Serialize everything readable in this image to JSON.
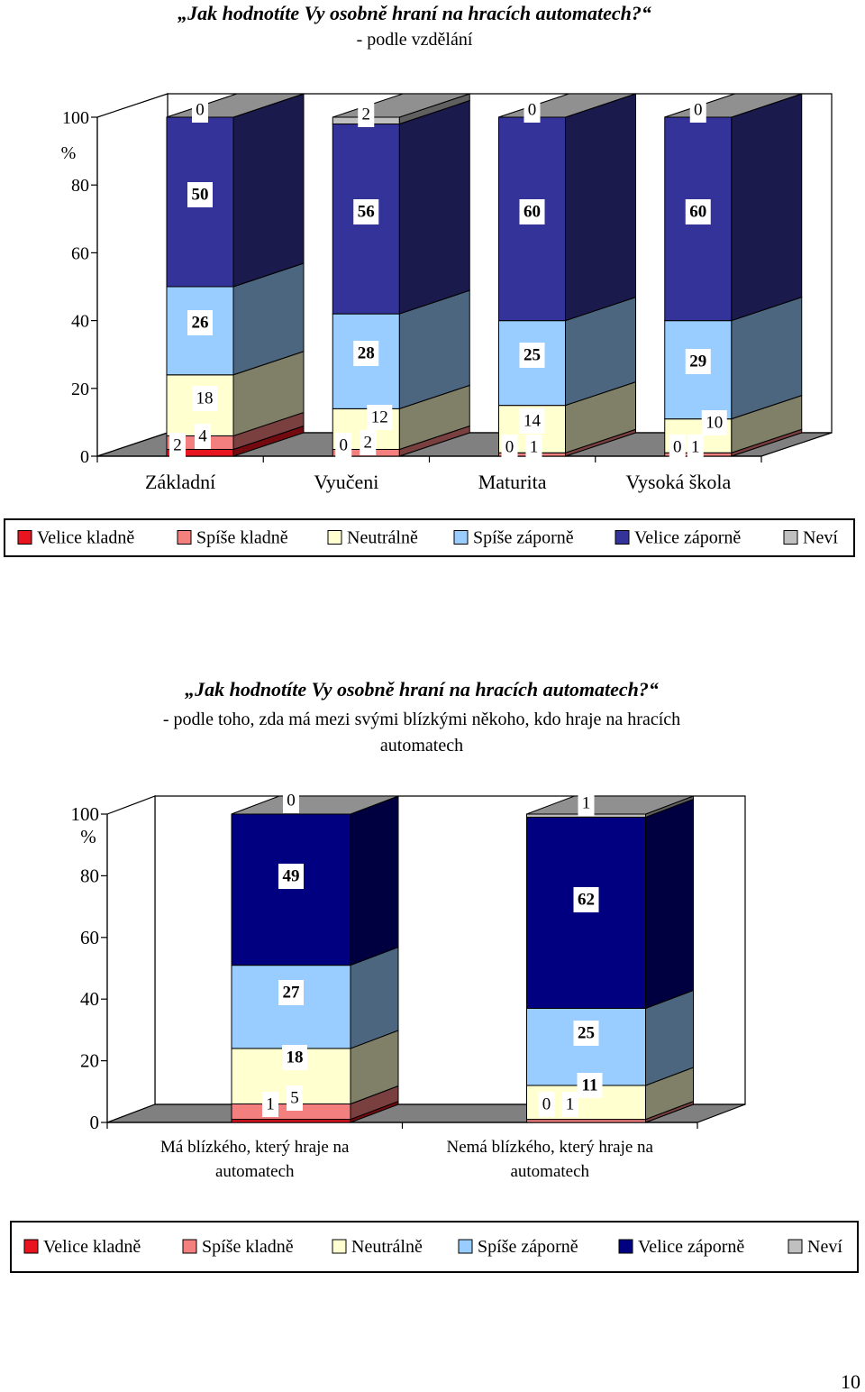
{
  "chart_data": [
    {
      "type": "bar",
      "stacked": true,
      "three_d": true,
      "title": "„Jak hodnotíte Vy osobně hraní na hracích automatech?“",
      "subtitle": "- podle vzdělání",
      "y_unit": "%",
      "ylim": [
        0,
        100
      ],
      "yticks": [
        "0",
        "20",
        "40",
        "60",
        "80",
        "100"
      ],
      "grid": false,
      "legend_position": "bottom",
      "categories": [
        "Základní",
        "Vyučeni",
        "Maturita",
        "Vysoká škola"
      ],
      "series": [
        {
          "name": "Velice kladně",
          "color": "#e8141e",
          "values": [
            2,
            0,
            0,
            0
          ]
        },
        {
          "name": "Spíše kladně",
          "color": "#f47f7f",
          "values": [
            4,
            2,
            1,
            1
          ]
        },
        {
          "name": "Neutrálně",
          "color": "#ffffd0",
          "values": [
            18,
            12,
            14,
            10
          ]
        },
        {
          "name": "Spíše záporně",
          "color": "#99ccff",
          "values": [
            26,
            28,
            25,
            29
          ]
        },
        {
          "name": "Velice záporně",
          "color": "#333399",
          "values": [
            50,
            56,
            60,
            60
          ]
        },
        {
          "name": "Neví",
          "color": "#c0c0c0",
          "values": [
            0,
            2,
            0,
            0
          ]
        }
      ]
    },
    {
      "type": "bar",
      "stacked": true,
      "three_d": true,
      "title": "„Jak hodnotíte Vy osobně hraní na hracích automatech?“",
      "subtitle": "- podle toho, zda má mezi svými blízkými někoho, kdo hraje na hracích automatech",
      "subtitle_lines": [
        "- podle toho, zda má mezi svými blízkými někoho, kdo hraje na hracích",
        "automatech"
      ],
      "y_unit": "%",
      "ylim": [
        0,
        100
      ],
      "yticks": [
        "0",
        "20",
        "40",
        "60",
        "80",
        "100"
      ],
      "grid": false,
      "legend_position": "bottom",
      "categories": [
        "Má blízkého, který hraje na automatech",
        "Nemá blízkého, který hraje na automatech"
      ],
      "category_lines": [
        [
          "Má blízkého, který hraje na",
          "automatech"
        ],
        [
          "Nemá blízkého, který hraje na",
          "automatech"
        ]
      ],
      "series": [
        {
          "name": "Velice kladně",
          "color": "#e8141e",
          "values": [
            1,
            0
          ]
        },
        {
          "name": "Spíše kladně",
          "color": "#f47f7f",
          "values": [
            5,
            1
          ]
        },
        {
          "name": "Neutrálně",
          "color": "#ffffd0",
          "values": [
            18,
            11
          ]
        },
        {
          "name": "Spíše záporně",
          "color": "#99ccff",
          "values": [
            27,
            25
          ]
        },
        {
          "name": "Velice záporně",
          "color": "#000080",
          "values": [
            49,
            62
          ]
        },
        {
          "name": "Neví",
          "color": "#c0c0c0",
          "values": [
            0,
            1
          ]
        }
      ]
    }
  ],
  "page_number": "10"
}
